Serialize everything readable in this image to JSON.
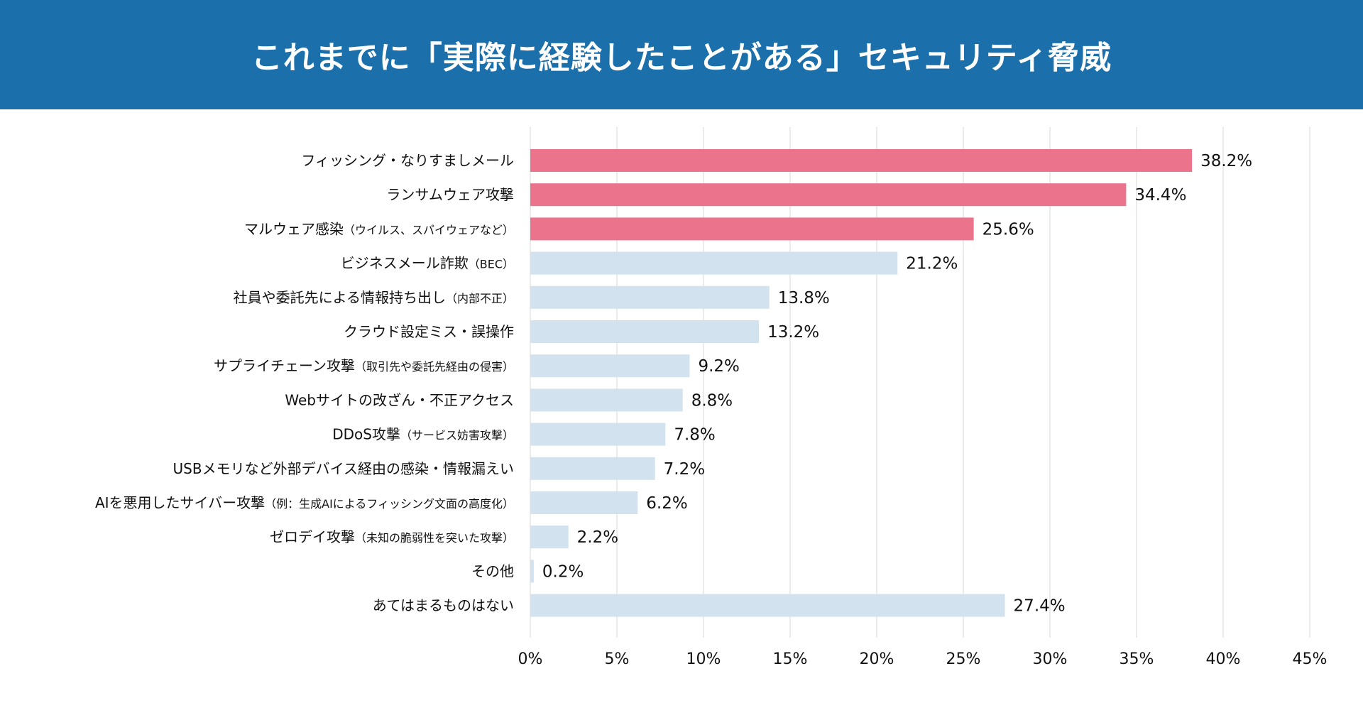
{
  "header": {
    "title": "これまでに「実際に経験したことがある」セキュリティ脅威"
  },
  "colors": {
    "header_bg": "#1b6fab",
    "highlight_bar": "#ec738c",
    "normal_bar": "#d2e2ee",
    "grid": "#ebebeb"
  },
  "chart_data": {
    "type": "bar",
    "orientation": "horizontal",
    "title": "これまでに「実際に経験したことがある」セキュリティ脅威",
    "xlabel": "",
    "ylabel": "",
    "xlim": [
      0,
      45
    ],
    "grid": true,
    "x_ticks": [
      "0%",
      "5%",
      "10%",
      "15%",
      "20%",
      "25%",
      "30%",
      "35%",
      "40%",
      "45%"
    ],
    "x_tick_values": [
      0,
      5,
      10,
      15,
      20,
      25,
      30,
      35,
      40,
      45
    ],
    "categories": [
      {
        "main": "フィッシング・なりすましメール",
        "note": ""
      },
      {
        "main": "ランサムウェア攻撃",
        "note": ""
      },
      {
        "main": "マルウェア感染",
        "note": "（ウイルス、スパイウェアなど）"
      },
      {
        "main": "ビジネスメール詐欺",
        "note": "（BEC）"
      },
      {
        "main": "社員や委託先による情報持ち出し",
        "note": "（内部不正）"
      },
      {
        "main": "クラウド設定ミス・誤操作",
        "note": ""
      },
      {
        "main": "サプライチェーン攻撃",
        "note": "（取引先や委託先経由の侵害）"
      },
      {
        "main": "Webサイトの改ざん・不正アクセス",
        "note": ""
      },
      {
        "main": "DDoS攻撃",
        "note": "（サービス妨害攻撃）"
      },
      {
        "main": "USBメモリなど外部デバイス経由の感染・情報漏えい",
        "note": ""
      },
      {
        "main": "AIを悪用したサイバー攻撃",
        "note": "（例：生成AIによるフィッシング文面の高度化）"
      },
      {
        "main": "ゼロデイ攻撃",
        "note": "（未知の脆弱性を突いた攻撃）"
      },
      {
        "main": "その他",
        "note": ""
      },
      {
        "main": "あてはまるものはない",
        "note": ""
      }
    ],
    "values": [
      38.2,
      34.4,
      25.6,
      21.2,
      13.8,
      13.2,
      9.2,
      8.8,
      7.8,
      7.2,
      6.2,
      2.2,
      0.2,
      27.4
    ],
    "value_labels": [
      "38.2%",
      "34.4%",
      "25.6%",
      "21.2%",
      "13.8%",
      "13.2%",
      "9.2%",
      "8.8%",
      "7.8%",
      "7.2%",
      "6.2%",
      "2.2%",
      "0.2%",
      "27.4%"
    ],
    "highlighted": [
      true,
      true,
      true,
      false,
      false,
      false,
      false,
      false,
      false,
      false,
      false,
      false,
      false,
      false
    ]
  }
}
